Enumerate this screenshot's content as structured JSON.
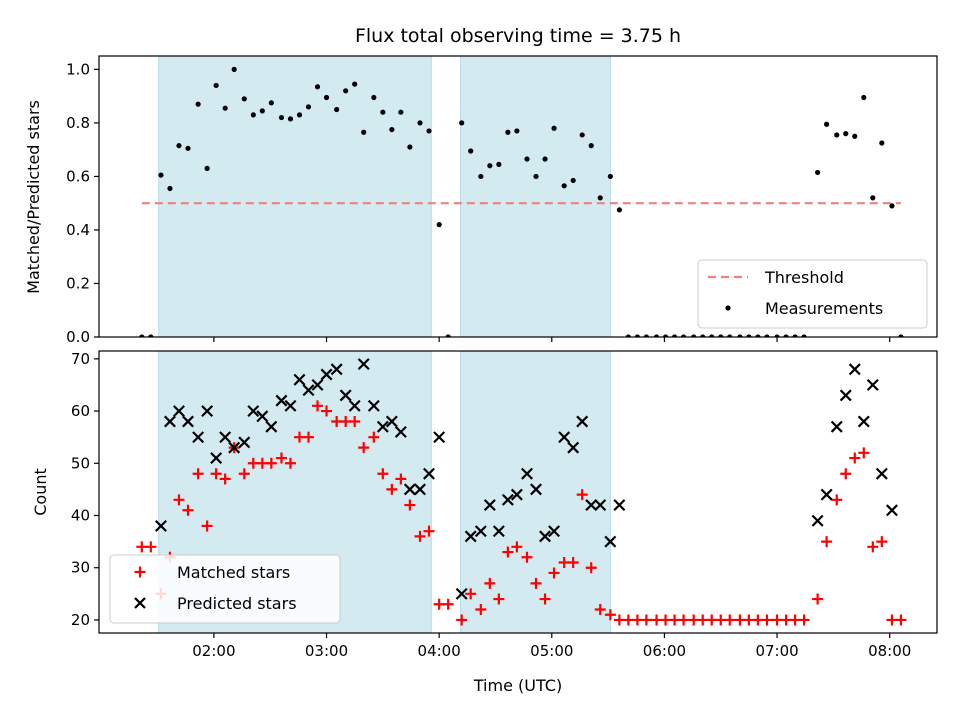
{
  "chart_data": [
    {
      "type": "scatter",
      "title": "Flux total observing time = 3.75 h",
      "xlabel": "",
      "ylabel": "Matched/Predicted stars",
      "xlim_hours": [
        0.98,
        8.42
      ],
      "ylim": [
        0.0,
        1.05
      ],
      "yticks": [
        0.0,
        0.2,
        0.4,
        0.6,
        0.8,
        1.0
      ],
      "ytick_labels": [
        "0.0",
        "0.2",
        "0.4",
        "0.6",
        "0.8",
        "1.0"
      ],
      "grid": false,
      "legend_position": "lower-right",
      "shaded_intervals_hours": [
        [
          1.51,
          3.93
        ],
        [
          4.19,
          5.52
        ]
      ],
      "shade_color": "#d3eaf1",
      "threshold": {
        "name": "Threshold",
        "value": 0.5,
        "x_range_hours": [
          1.36,
          8.1
        ],
        "color": "#f08080",
        "style": "dashed"
      },
      "series": [
        {
          "name": "Measurements",
          "marker": "dot",
          "color": "#000000",
          "points": [
            [
              1.36,
              0.0
            ],
            [
              1.44,
              0.0
            ],
            [
              1.53,
              0.605
            ],
            [
              1.61,
              0.555
            ],
            [
              1.69,
              0.715
            ],
            [
              1.77,
              0.705
            ],
            [
              1.86,
              0.87
            ],
            [
              1.94,
              0.63
            ],
            [
              2.02,
              0.94
            ],
            [
              2.1,
              0.855
            ],
            [
              2.18,
              1.0
            ],
            [
              2.27,
              0.89
            ],
            [
              2.35,
              0.83
            ],
            [
              2.43,
              0.845
            ],
            [
              2.51,
              0.875
            ],
            [
              2.6,
              0.82
            ],
            [
              2.68,
              0.815
            ],
            [
              2.76,
              0.83
            ],
            [
              2.84,
              0.86
            ],
            [
              2.92,
              0.935
            ],
            [
              3.0,
              0.895
            ],
            [
              3.09,
              0.85
            ],
            [
              3.17,
              0.92
            ],
            [
              3.25,
              0.945
            ],
            [
              3.33,
              0.765
            ],
            [
              3.42,
              0.895
            ],
            [
              3.5,
              0.84
            ],
            [
              3.58,
              0.775
            ],
            [
              3.66,
              0.84
            ],
            [
              3.74,
              0.71
            ],
            [
              3.83,
              0.8
            ],
            [
              3.91,
              0.77
            ],
            [
              4.0,
              0.42
            ],
            [
              4.08,
              0.0
            ],
            [
              4.2,
              0.8
            ],
            [
              4.28,
              0.695
            ],
            [
              4.37,
              0.6
            ],
            [
              4.45,
              0.64
            ],
            [
              4.53,
              0.645
            ],
            [
              4.61,
              0.765
            ],
            [
              4.69,
              0.77
            ],
            [
              4.78,
              0.665
            ],
            [
              4.86,
              0.6
            ],
            [
              4.94,
              0.665
            ],
            [
              5.02,
              0.78
            ],
            [
              5.11,
              0.565
            ],
            [
              5.19,
              0.585
            ],
            [
              5.27,
              0.755
            ],
            [
              5.35,
              0.715
            ],
            [
              5.43,
              0.52
            ],
            [
              5.52,
              0.6
            ],
            [
              5.6,
              0.475
            ],
            [
              5.68,
              0.0
            ],
            [
              5.76,
              0.0
            ],
            [
              5.84,
              0.0
            ],
            [
              5.93,
              0.0
            ],
            [
              6.01,
              0.0
            ],
            [
              6.09,
              0.0
            ],
            [
              6.17,
              0.0
            ],
            [
              6.26,
              0.0
            ],
            [
              6.34,
              0.0
            ],
            [
              6.42,
              0.0
            ],
            [
              6.5,
              0.0
            ],
            [
              6.58,
              0.0
            ],
            [
              6.67,
              0.0
            ],
            [
              6.75,
              0.0
            ],
            [
              6.83,
              0.0
            ],
            [
              6.91,
              0.0
            ],
            [
              7.0,
              0.0
            ],
            [
              7.08,
              0.0
            ],
            [
              7.16,
              0.0
            ],
            [
              7.24,
              0.0
            ],
            [
              7.36,
              0.615
            ],
            [
              7.44,
              0.795
            ],
            [
              7.53,
              0.755
            ],
            [
              7.61,
              0.76
            ],
            [
              7.69,
              0.75
            ],
            [
              7.77,
              0.895
            ],
            [
              7.85,
              0.52
            ],
            [
              7.93,
              0.725
            ],
            [
              8.02,
              0.49
            ],
            [
              8.1,
              0.0
            ]
          ]
        }
      ]
    },
    {
      "type": "scatter",
      "title": "",
      "xlabel": "Time (UTC)",
      "ylabel": "Count",
      "xlim_hours": [
        0.98,
        8.42
      ],
      "ylim": [
        17.5,
        71.5
      ],
      "xticks_hours": [
        2,
        3,
        4,
        5,
        6,
        7,
        8
      ],
      "xtick_labels": [
        "02:00",
        "03:00",
        "04:00",
        "05:00",
        "06:00",
        "07:00",
        "08:00"
      ],
      "yticks": [
        20,
        30,
        40,
        50,
        60,
        70
      ],
      "ytick_labels": [
        "20",
        "30",
        "40",
        "50",
        "60",
        "70"
      ],
      "grid": false,
      "legend_position": "lower-left",
      "shaded_intervals_hours": [
        [
          1.51,
          3.93
        ],
        [
          4.19,
          5.52
        ]
      ],
      "shade_color": "#d3eaf1",
      "series": [
        {
          "name": "Matched stars",
          "marker": "plus",
          "color": "#ff0000",
          "points": [
            [
              1.36,
              34
            ],
            [
              1.44,
              34
            ],
            [
              1.53,
              25
            ],
            [
              1.61,
              32
            ],
            [
              1.69,
              43
            ],
            [
              1.77,
              41
            ],
            [
              1.86,
              48
            ],
            [
              1.94,
              38
            ],
            [
              2.02,
              48
            ],
            [
              2.1,
              47
            ],
            [
              2.18,
              53
            ],
            [
              2.27,
              48
            ],
            [
              2.35,
              50
            ],
            [
              2.43,
              50
            ],
            [
              2.51,
              50
            ],
            [
              2.6,
              51
            ],
            [
              2.68,
              50
            ],
            [
              2.76,
              55
            ],
            [
              2.84,
              55
            ],
            [
              2.92,
              61
            ],
            [
              3.0,
              60
            ],
            [
              3.09,
              58
            ],
            [
              3.17,
              58
            ],
            [
              3.25,
              58
            ],
            [
              3.33,
              53
            ],
            [
              3.42,
              55
            ],
            [
              3.5,
              48
            ],
            [
              3.58,
              45
            ],
            [
              3.66,
              47
            ],
            [
              3.74,
              42
            ],
            [
              3.83,
              36
            ],
            [
              3.91,
              37
            ],
            [
              4.0,
              23
            ],
            [
              4.08,
              23
            ],
            [
              4.2,
              20
            ],
            [
              4.28,
              25
            ],
            [
              4.37,
              22
            ],
            [
              4.45,
              27
            ],
            [
              4.53,
              24
            ],
            [
              4.61,
              33
            ],
            [
              4.69,
              34
            ],
            [
              4.78,
              32
            ],
            [
              4.86,
              27
            ],
            [
              4.94,
              24
            ],
            [
              5.02,
              29
            ],
            [
              5.11,
              31
            ],
            [
              5.19,
              31
            ],
            [
              5.27,
              44
            ],
            [
              5.35,
              30
            ],
            [
              5.43,
              22
            ],
            [
              5.52,
              21
            ],
            [
              5.6,
              20
            ],
            [
              5.68,
              20
            ],
            [
              5.76,
              20
            ],
            [
              5.84,
              20
            ],
            [
              5.93,
              20
            ],
            [
              6.01,
              20
            ],
            [
              6.09,
              20
            ],
            [
              6.17,
              20
            ],
            [
              6.26,
              20
            ],
            [
              6.34,
              20
            ],
            [
              6.42,
              20
            ],
            [
              6.5,
              20
            ],
            [
              6.58,
              20
            ],
            [
              6.67,
              20
            ],
            [
              6.75,
              20
            ],
            [
              6.83,
              20
            ],
            [
              6.91,
              20
            ],
            [
              7.0,
              20
            ],
            [
              7.08,
              20
            ],
            [
              7.16,
              20
            ],
            [
              7.24,
              20
            ],
            [
              7.36,
              24
            ],
            [
              7.44,
              35
            ],
            [
              7.53,
              43
            ],
            [
              7.61,
              48
            ],
            [
              7.69,
              51
            ],
            [
              7.77,
              52
            ],
            [
              7.85,
              34
            ],
            [
              7.93,
              35
            ],
            [
              8.02,
              20
            ],
            [
              8.1,
              20
            ]
          ]
        },
        {
          "name": "Predicted stars",
          "marker": "x",
          "color": "#000000",
          "points": [
            [
              1.53,
              38
            ],
            [
              1.61,
              58
            ],
            [
              1.69,
              60
            ],
            [
              1.77,
              58
            ],
            [
              1.86,
              55
            ],
            [
              1.94,
              60
            ],
            [
              2.02,
              51
            ],
            [
              2.1,
              55
            ],
            [
              2.18,
              53
            ],
            [
              2.27,
              54
            ],
            [
              2.35,
              60
            ],
            [
              2.43,
              59
            ],
            [
              2.51,
              57
            ],
            [
              2.6,
              62
            ],
            [
              2.68,
              61
            ],
            [
              2.76,
              66
            ],
            [
              2.84,
              64
            ],
            [
              2.92,
              65
            ],
            [
              3.0,
              67
            ],
            [
              3.09,
              68
            ],
            [
              3.17,
              63
            ],
            [
              3.25,
              61
            ],
            [
              3.33,
              69
            ],
            [
              3.42,
              61
            ],
            [
              3.5,
              57
            ],
            [
              3.58,
              58
            ],
            [
              3.66,
              56
            ],
            [
              3.74,
              45
            ],
            [
              3.83,
              45
            ],
            [
              3.91,
              48
            ],
            [
              4.0,
              55
            ],
            [
              4.2,
              25
            ],
            [
              4.28,
              36
            ],
            [
              4.37,
              37
            ],
            [
              4.45,
              42
            ],
            [
              4.53,
              37
            ],
            [
              4.61,
              43
            ],
            [
              4.69,
              44
            ],
            [
              4.78,
              48
            ],
            [
              4.86,
              45
            ],
            [
              4.94,
              36
            ],
            [
              5.02,
              37
            ],
            [
              5.11,
              55
            ],
            [
              5.19,
              53
            ],
            [
              5.27,
              58
            ],
            [
              5.35,
              42
            ],
            [
              5.43,
              42
            ],
            [
              5.52,
              35
            ],
            [
              5.6,
              42
            ],
            [
              7.36,
              39
            ],
            [
              7.44,
              44
            ],
            [
              7.53,
              57
            ],
            [
              7.61,
              63
            ],
            [
              7.69,
              68
            ],
            [
              7.77,
              58
            ],
            [
              7.85,
              65
            ],
            [
              7.93,
              48
            ],
            [
              8.02,
              41
            ]
          ]
        }
      ]
    }
  ]
}
